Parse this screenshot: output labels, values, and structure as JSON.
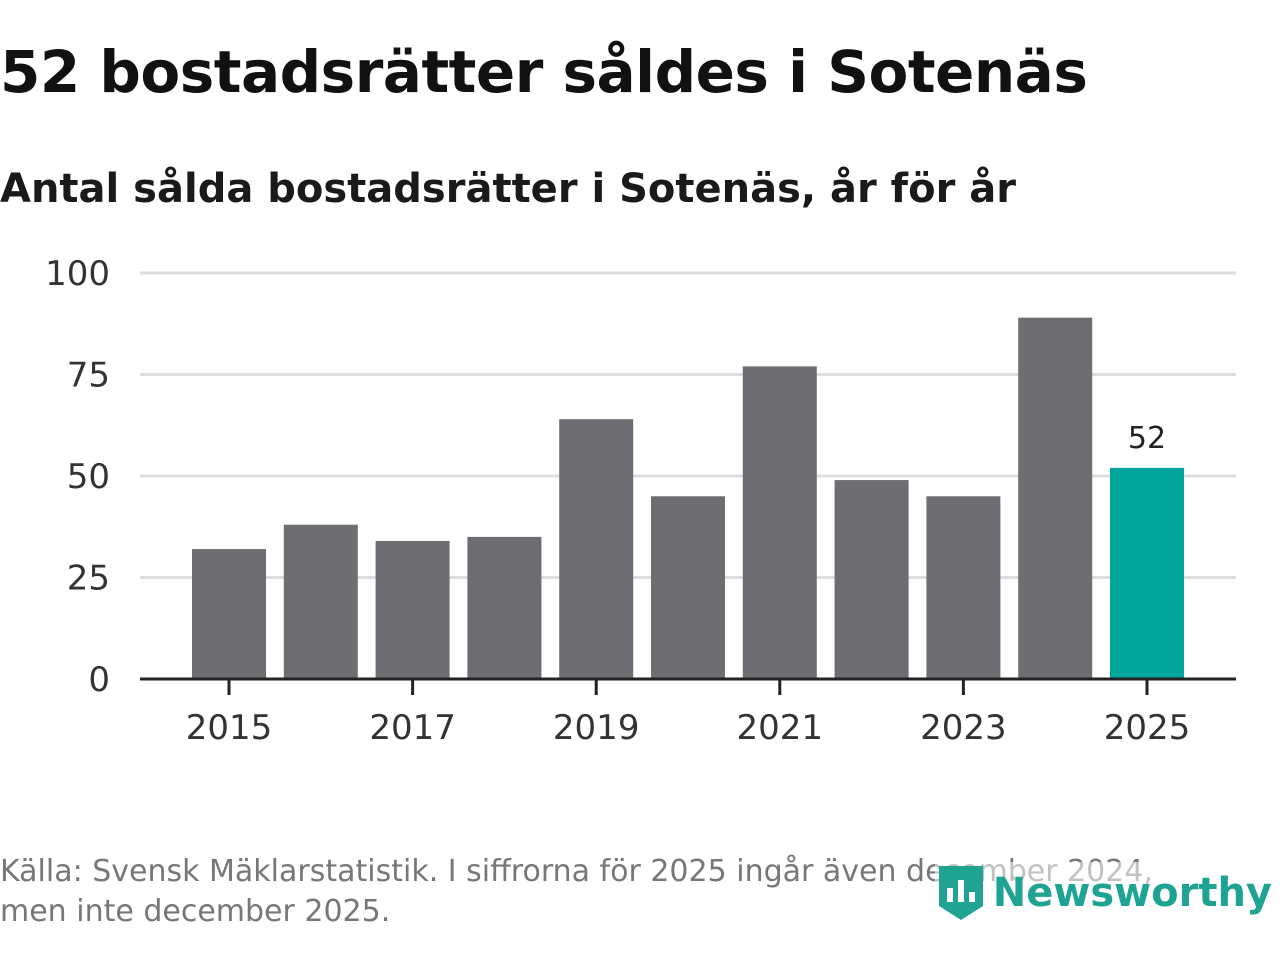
{
  "title": "52 bostadsrätter såldes i Sotenäs",
  "subtitle": "Antal sålda bostadsrätter i Sotenäs, år för år",
  "chart_data": {
    "type": "bar",
    "categories": [
      "2015",
      "2016",
      "2017",
      "2018",
      "2019",
      "2020",
      "2021",
      "2022",
      "2023",
      "2024",
      "2025"
    ],
    "values": [
      32,
      38,
      34,
      35,
      64,
      45,
      77,
      49,
      45,
      89,
      52
    ],
    "x_ticks": [
      "2015",
      "2017",
      "2019",
      "2021",
      "2023",
      "2025"
    ],
    "y_ticks": [
      0,
      25,
      50,
      75,
      100
    ],
    "ylim": [
      0,
      100
    ],
    "grid": true,
    "highlight_category": "2025",
    "highlight_label": "52",
    "colors": {
      "bar": "#6e6d72",
      "highlight": "#00a69a",
      "grid": "#dddddd",
      "axis": "#222222"
    }
  },
  "footer": {
    "line1": "Källa: Svensk Mäklarstatistik. I siffrorna för 2025 ingår även december 2024,",
    "line2": "men inte december 2025."
  },
  "logo": {
    "text": "Newsworthy",
    "icon": "newsworthy-logo-icon",
    "color": "#1fa393"
  }
}
